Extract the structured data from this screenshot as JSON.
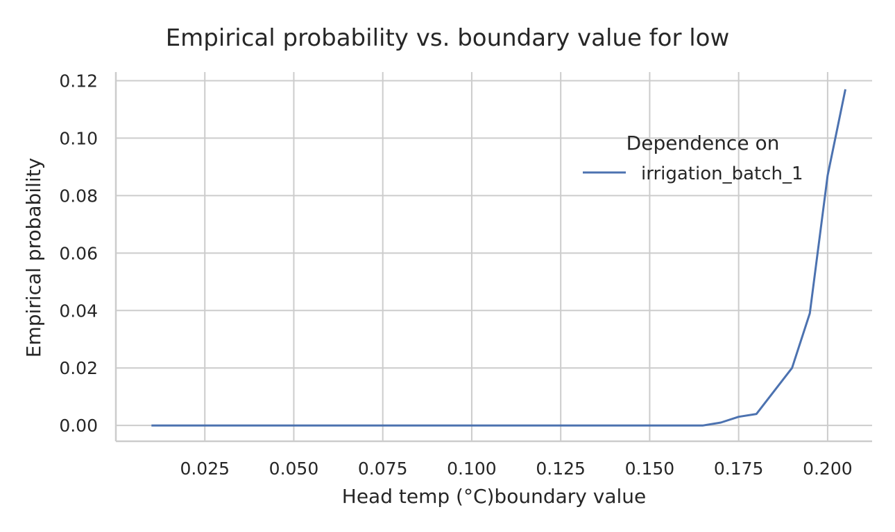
{
  "chart_data": {
    "type": "line",
    "title": "Empirical probability vs. boundary value for low",
    "xlabel": "Head temp (°C)boundary value",
    "ylabel": "Empirical probability",
    "xlim": [
      0.0,
      0.2125
    ],
    "ylim": [
      -0.0055,
      0.123
    ],
    "xticks": [
      "0.025",
      "0.050",
      "0.075",
      "0.100",
      "0.125",
      "0.150",
      "0.175",
      "0.200"
    ],
    "yticks": [
      "0.00",
      "0.02",
      "0.04",
      "0.06",
      "0.08",
      "0.10",
      "0.12"
    ],
    "grid": true,
    "legend": {
      "title": "Dependence on",
      "placement": "upper-right"
    },
    "series": [
      {
        "name": "irrigation_batch_1",
        "color": "#4c72b0",
        "x": [
          0.01,
          0.015,
          0.02,
          0.025,
          0.03,
          0.035,
          0.04,
          0.045,
          0.05,
          0.055,
          0.06,
          0.065,
          0.07,
          0.075,
          0.08,
          0.085,
          0.09,
          0.095,
          0.1,
          0.105,
          0.11,
          0.115,
          0.12,
          0.125,
          0.13,
          0.135,
          0.14,
          0.145,
          0.15,
          0.155,
          0.16,
          0.165,
          0.17,
          0.175,
          0.18,
          0.185,
          0.19,
          0.195,
          0.2,
          0.205
        ],
        "y": [
          0,
          0,
          0,
          0,
          0,
          0,
          0,
          0,
          0,
          0,
          0,
          0,
          0,
          0,
          0,
          0,
          0,
          0,
          0,
          0,
          0,
          0,
          0,
          0,
          0,
          0,
          0,
          0,
          0,
          0,
          0,
          0,
          0.001,
          0.003,
          0.004,
          0.012,
          0.02,
          0.039,
          0.087,
          0.117
        ]
      }
    ]
  }
}
